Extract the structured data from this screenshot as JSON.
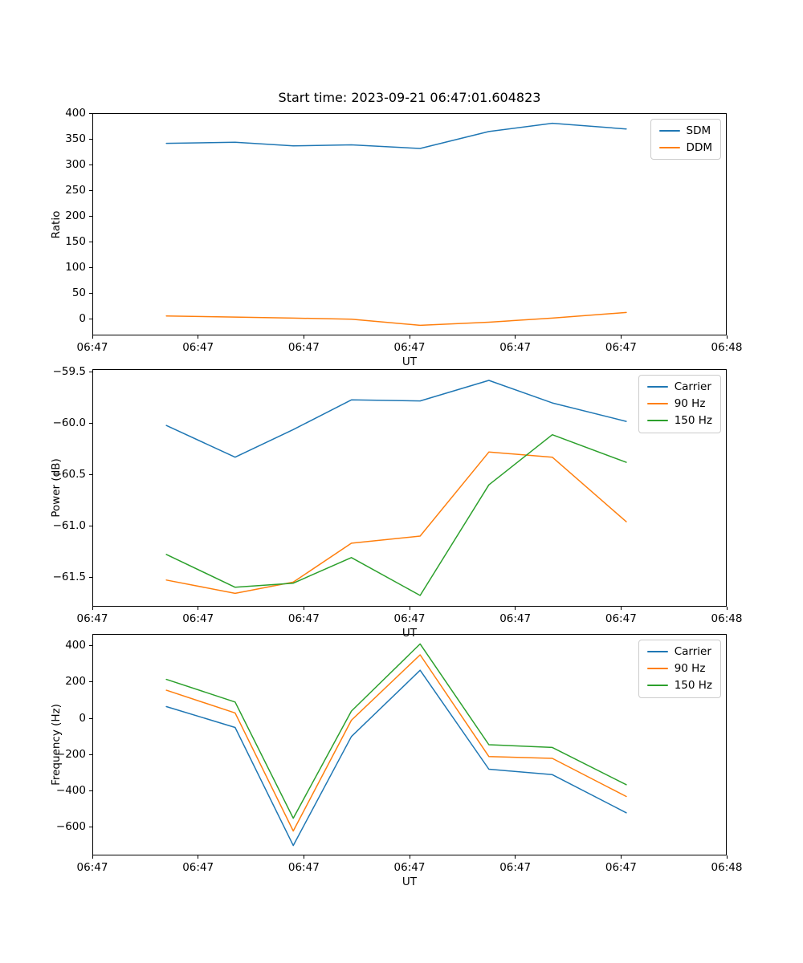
{
  "figure_title": "Start time: 2023-09-21 06:47:01.604823",
  "colors": {
    "blue": "#1f77b4",
    "orange": "#ff7f0e",
    "green": "#2ca02c"
  },
  "chart_data": [
    {
      "type": "line",
      "title": "Start time: 2023-09-21 06:47:01.604823",
      "xlabel": "UT",
      "ylabel": "Ratio",
      "x_unit": "seconds after 06:47:00 UT",
      "x": [
        7,
        13.5,
        19,
        24.5,
        31,
        37.5,
        43.5,
        50.5
      ],
      "xlim": [
        0,
        60
      ],
      "ylim": [
        -31.7,
        400.7
      ],
      "xticks": [
        0,
        10,
        20,
        30,
        40,
        50,
        60
      ],
      "xtick_labels": [
        "06:47",
        "06:47",
        "06:47",
        "06:47",
        "06:47",
        "06:47",
        "06:48"
      ],
      "yticks": [
        0,
        50,
        100,
        150,
        200,
        250,
        300,
        350,
        400
      ],
      "ytick_labels": [
        "0",
        "50",
        "100",
        "150",
        "200",
        "250",
        "300",
        "350",
        "400"
      ],
      "grid": false,
      "legend_position": "upper right",
      "series": [
        {
          "name": "SDM",
          "color": "#1f77b4",
          "values": [
            342,
            344,
            337,
            339,
            332,
            365,
            381,
            370
          ]
        },
        {
          "name": "DDM",
          "color": "#ff7f0e",
          "values": [
            6,
            4,
            2,
            0,
            -12,
            -6,
            2,
            13
          ]
        }
      ]
    },
    {
      "type": "line",
      "title": "",
      "xlabel": "UT",
      "ylabel": "Power (dB)",
      "x_unit": "seconds after 06:47:00 UT",
      "x": [
        7,
        13.5,
        19,
        24.5,
        31,
        37.5,
        43.5,
        50.5
      ],
      "xlim": [
        0,
        60
      ],
      "ylim": [
        -61.79,
        -59.47
      ],
      "xticks": [
        0,
        10,
        20,
        30,
        40,
        50,
        60
      ],
      "xtick_labels": [
        "06:47",
        "06:47",
        "06:47",
        "06:47",
        "06:47",
        "06:47",
        "06:48"
      ],
      "yticks": [
        -61.5,
        -61.0,
        -60.5,
        -60.0,
        -59.5
      ],
      "ytick_labels": [
        "−61.5",
        "−61.0",
        "−60.5",
        "−60.0",
        "−59.5"
      ],
      "grid": false,
      "legend_position": "upper right",
      "series": [
        {
          "name": "Carrier",
          "color": "#1f77b4",
          "values": [
            -60.02,
            -60.33,
            -60.06,
            -59.77,
            -59.78,
            -59.58,
            -59.8,
            -59.98
          ]
        },
        {
          "name": "90 Hz",
          "color": "#ff7f0e",
          "values": [
            -61.53,
            -61.66,
            -61.55,
            -61.17,
            -61.1,
            -60.28,
            -60.33,
            -60.96
          ]
        },
        {
          "name": "150 Hz",
          "color": "#2ca02c",
          "values": [
            -61.28,
            -61.6,
            -61.56,
            -61.31,
            -61.68,
            -60.6,
            -60.11,
            -60.38
          ]
        }
      ]
    },
    {
      "type": "line",
      "title": "",
      "xlabel": "UT",
      "ylabel": "Frequency (Hz)",
      "x_unit": "seconds after 06:47:00 UT",
      "x": [
        7,
        13.5,
        19,
        24.5,
        31,
        37.5,
        43.5,
        50.5
      ],
      "xlim": [
        0,
        60
      ],
      "ylim": [
        -755,
        465
      ],
      "xticks": [
        0,
        10,
        20,
        30,
        40,
        50,
        60
      ],
      "xtick_labels": [
        "06:47",
        "06:47",
        "06:47",
        "06:47",
        "06:47",
        "06:47",
        "06:48"
      ],
      "yticks": [
        -600,
        -400,
        -200,
        0,
        200,
        400
      ],
      "ytick_labels": [
        "−600",
        "−400",
        "−200",
        "0",
        "200",
        "400"
      ],
      "grid": false,
      "legend_position": "upper right",
      "series": [
        {
          "name": "Carrier",
          "color": "#1f77b4",
          "values": [
            65,
            -50,
            -700,
            -100,
            265,
            -280,
            -310,
            -520
          ]
        },
        {
          "name": "90 Hz",
          "color": "#ff7f0e",
          "values": [
            155,
            30,
            -620,
            -10,
            350,
            -210,
            -220,
            -430
          ]
        },
        {
          "name": "150 Hz",
          "color": "#2ca02c",
          "values": [
            215,
            90,
            -550,
            40,
            410,
            -145,
            -160,
            -365
          ]
        }
      ]
    }
  ]
}
